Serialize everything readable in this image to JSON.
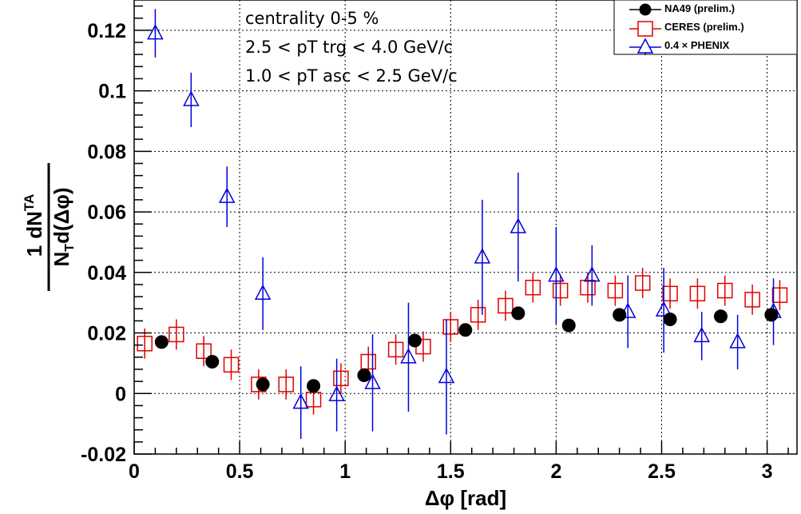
{
  "chart_data": {
    "type": "scatter",
    "xlabel": "Δφ [rad]",
    "ylabel": {
      "numerator": "1",
      "prefix": "dN",
      "superscript": "TA",
      "denominator": "N",
      "subscript": "T",
      "denominator_rest": "d(Δφ)"
    },
    "xlim": [
      0,
      3.1416
    ],
    "ylim": [
      -0.02,
      0.13
    ],
    "x_ticks": [
      0,
      0.5,
      1,
      1.5,
      2,
      2.5,
      3
    ],
    "x_tick_labels": [
      "0",
      "0.5",
      "1",
      "1.5",
      "2",
      "2.5",
      "3"
    ],
    "y_ticks": [
      -0.02,
      0,
      0.02,
      0.04,
      0.06,
      0.08,
      0.1,
      0.12
    ],
    "y_tick_labels": [
      "-0.02",
      "0",
      "0.02",
      "0.04",
      "0.06",
      "0.08",
      "0.1",
      "0.12"
    ],
    "grid": true,
    "annotations": [
      "centrality 0-5 %",
      "2.5 < pT trg < 4.0 GeV/c",
      "1.0 < pT asc < 2.5 GeV/c"
    ],
    "legend_position": "top-right",
    "series": [
      {
        "name": "NA49 (prelim.)",
        "marker": "filled-circle",
        "color": "#000000",
        "x": [
          0.13,
          0.37,
          0.61,
          0.85,
          1.09,
          1.33,
          1.57,
          1.82,
          2.06,
          2.3,
          2.54,
          2.78,
          3.02
        ],
        "y": [
          0.017,
          0.0105,
          0.003,
          0.0025,
          0.006,
          0.0175,
          0.021,
          0.0265,
          0.0225,
          0.026,
          0.0245,
          0.0255,
          0.026
        ],
        "err": [
          0,
          0,
          0,
          0,
          0,
          0,
          0,
          0,
          0,
          0,
          0,
          0,
          0
        ]
      },
      {
        "name": "CERES (prelim.)",
        "marker": "open-square",
        "color": "#e00000",
        "x": [
          0.05,
          0.2,
          0.33,
          0.46,
          0.59,
          0.72,
          0.85,
          0.98,
          1.11,
          1.24,
          1.37,
          1.5,
          1.63,
          1.76,
          1.89,
          2.02,
          2.15,
          2.28,
          2.41,
          2.54,
          2.67,
          2.8,
          2.93,
          3.06
        ],
        "y": [
          0.0165,
          0.0195,
          0.014,
          0.0095,
          0.003,
          0.003,
          -0.002,
          0.005,
          0.0105,
          0.0145,
          0.0155,
          0.022,
          0.026,
          0.029,
          0.035,
          0.034,
          0.035,
          0.034,
          0.0365,
          0.033,
          0.033,
          0.034,
          0.031,
          0.0325
        ],
        "err": [
          0.005,
          0.005,
          0.005,
          0.005,
          0.005,
          0.005,
          0.005,
          0.005,
          0.005,
          0.005,
          0.005,
          0.005,
          0.005,
          0.005,
          0.005,
          0.005,
          0.005,
          0.005,
          0.005,
          0.005,
          0.005,
          0.005,
          0.005,
          0.005
        ]
      },
      {
        "name": "0.4 × PHENIX",
        "marker": "open-triangle",
        "color": "#0000dd",
        "x": [
          0.1,
          0.27,
          0.44,
          0.61,
          0.79,
          0.96,
          1.13,
          1.3,
          1.48,
          1.65,
          1.82,
          2.0,
          2.17,
          2.34,
          2.51,
          2.69,
          2.86,
          3.03
        ],
        "y": [
          0.119,
          0.097,
          0.065,
          0.033,
          -0.003,
          -0.0005,
          0.0035,
          0.012,
          0.0055,
          0.045,
          0.055,
          0.039,
          0.039,
          0.027,
          0.0275,
          0.019,
          0.017,
          0.027
        ],
        "err": [
          0.008,
          0.009,
          0.01,
          0.012,
          0.012,
          0.012,
          0.016,
          0.018,
          0.019,
          0.019,
          0.018,
          0.016,
          0.01,
          0.012,
          0.014,
          0.008,
          0.009,
          0.011
        ]
      }
    ]
  }
}
